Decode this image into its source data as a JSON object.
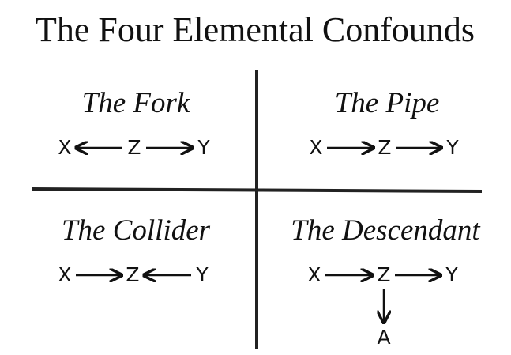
{
  "title": "The Four Elemental Confounds",
  "quadrants": [
    {
      "title": "The Fork",
      "nodes": [
        "X",
        "Z",
        "Y"
      ]
    },
    {
      "title": "The Pipe",
      "nodes": [
        "X",
        "Z",
        "Y"
      ]
    },
    {
      "title": "The Collider",
      "nodes": [
        "X",
        "Z",
        "Y"
      ]
    },
    {
      "title": "The Descendant",
      "nodes": [
        "X",
        "Z",
        "Y",
        "A"
      ]
    }
  ]
}
